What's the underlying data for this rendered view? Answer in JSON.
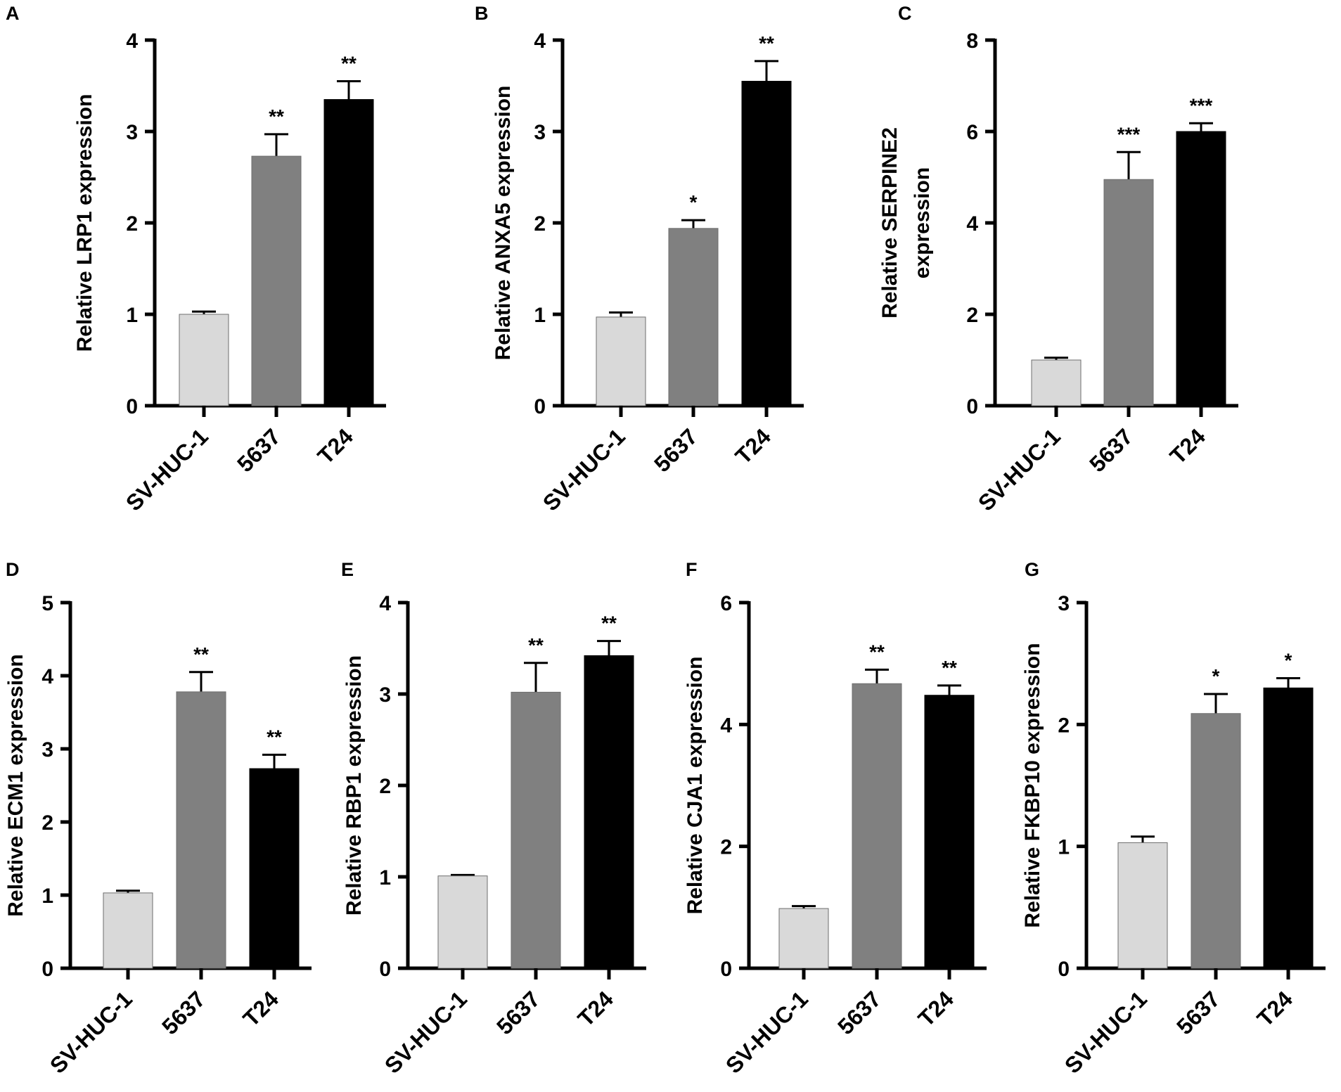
{
  "figure_title": "",
  "colors": {
    "SV-HUC-1": "#d9d9d9",
    "5637": "#808080",
    "T24": "#000000",
    "axis": "#000000"
  },
  "chart_data": [
    {
      "panel": "A",
      "type": "bar",
      "title": "",
      "xlabel": "",
      "ylabel": "Relative LRP1 expression",
      "categories": [
        "SV-HUC-1",
        "5637",
        "T24"
      ],
      "values": [
        1.0,
        2.73,
        3.35
      ],
      "errors": [
        0.03,
        0.24,
        0.2
      ],
      "significance": [
        "",
        "**",
        "**"
      ],
      "ylim": [
        0,
        4
      ],
      "yticks": [
        0,
        1,
        2,
        3,
        4
      ],
      "ylabel_lines": [
        "Relative LRP1 expression"
      ]
    },
    {
      "panel": "B",
      "type": "bar",
      "title": "",
      "xlabel": "",
      "ylabel": "Relative ANXA5 expression",
      "categories": [
        "SV-HUC-1",
        "5637",
        "T24"
      ],
      "values": [
        0.97,
        1.94,
        3.55
      ],
      "errors": [
        0.05,
        0.09,
        0.22
      ],
      "significance": [
        "",
        "*",
        "**"
      ],
      "ylim": [
        0,
        4
      ],
      "yticks": [
        0,
        1,
        2,
        3,
        4
      ],
      "ylabel_lines": [
        "Relative ANXA5 expression"
      ]
    },
    {
      "panel": "C",
      "type": "bar",
      "title": "",
      "xlabel": "",
      "ylabel": "Relative SERPINE2 expression",
      "categories": [
        "SV-HUC-1",
        "5637",
        "T24"
      ],
      "values": [
        1.0,
        4.95,
        6.0
      ],
      "errors": [
        0.05,
        0.6,
        0.18
      ],
      "significance": [
        "",
        "***",
        "***"
      ],
      "ylim": [
        0,
        8
      ],
      "yticks": [
        0,
        2,
        4,
        6,
        8
      ],
      "ylabel_lines": [
        "Relative SERPINE2",
        "expression"
      ]
    },
    {
      "panel": "D",
      "type": "bar",
      "title": "",
      "xlabel": "",
      "ylabel": "Relative ECM1 expression",
      "categories": [
        "SV-HUC-1",
        "5637",
        "T24"
      ],
      "values": [
        1.03,
        3.78,
        2.73
      ],
      "errors": [
        0.03,
        0.27,
        0.19
      ],
      "significance": [
        "",
        "**",
        "**"
      ],
      "ylim": [
        0,
        5
      ],
      "yticks": [
        0,
        1,
        2,
        3,
        4,
        5
      ],
      "ylabel_lines": [
        "Relative ECM1 expression"
      ]
    },
    {
      "panel": "E",
      "type": "bar",
      "title": "",
      "xlabel": "",
      "ylabel": "Relative RBP1 expression",
      "categories": [
        "SV-HUC-1",
        "5637",
        "T24"
      ],
      "values": [
        1.01,
        3.02,
        3.42
      ],
      "errors": [
        0.01,
        0.32,
        0.16
      ],
      "significance": [
        "",
        "**",
        "**"
      ],
      "ylim": [
        0,
        4
      ],
      "yticks": [
        0,
        1,
        2,
        3,
        4
      ],
      "ylabel_lines": [
        "Relative RBP1 expression"
      ]
    },
    {
      "panel": "F",
      "type": "bar",
      "title": "",
      "xlabel": "",
      "ylabel": "Relative CJA1 expression",
      "categories": [
        "SV-HUC-1",
        "5637",
        "T24"
      ],
      "values": [
        0.98,
        4.67,
        4.48
      ],
      "errors": [
        0.04,
        0.23,
        0.16
      ],
      "significance": [
        "",
        "**",
        "**"
      ],
      "ylim": [
        0,
        6
      ],
      "yticks": [
        0,
        2,
        4,
        6
      ],
      "ylabel_lines": [
        "Relative CJA1 expression"
      ]
    },
    {
      "panel": "G",
      "type": "bar",
      "title": "",
      "xlabel": "",
      "ylabel": "Relative FKBP10 expression",
      "categories": [
        "SV-HUC-1",
        "5637",
        "T24"
      ],
      "values": [
        1.03,
        2.09,
        2.3
      ],
      "errors": [
        0.05,
        0.16,
        0.08
      ],
      "significance": [
        "",
        "*",
        "*"
      ],
      "ylim": [
        0,
        3
      ],
      "yticks": [
        0,
        1,
        2,
        3
      ],
      "ylabel_lines": [
        "Relative FKBP10 expression"
      ]
    }
  ]
}
